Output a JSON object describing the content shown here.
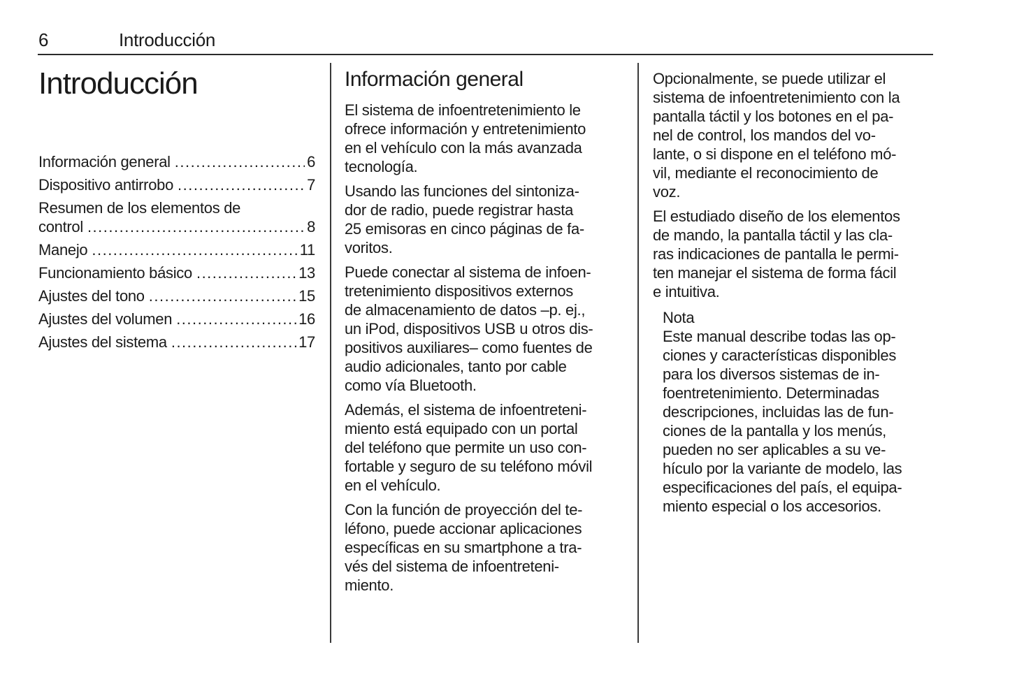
{
  "colors": {
    "text": "#1a1a1a",
    "rule": "#2b2b2b"
  },
  "page_header": {
    "page_number": "6",
    "title": "Introducción"
  },
  "left_column": {
    "chapter_title": "Introducción",
    "toc": {
      "items": [
        {
          "label": "Información general",
          "page": "6"
        },
        {
          "label": "Dispositivo antirrobo",
          "page": "7"
        },
        {
          "label": "Resumen de los elementos de",
          "label2": "control",
          "page": "8"
        },
        {
          "label": "Manejo",
          "page": "11"
        },
        {
          "label": "Funcionamiento básico",
          "page": "13"
        },
        {
          "label": "Ajustes del tono",
          "page": "15"
        },
        {
          "label": "Ajustes del volumen",
          "page": "16"
        },
        {
          "label": "Ajustes del sistema",
          "page": "17"
        }
      ]
    }
  },
  "middle_column": {
    "heading": "Información general",
    "paragraphs": [
      "El sistema de infoentretenimiento le\nofrece información y entretenimiento\nen el vehículo con la más avanzada\ntecnología.",
      "Usando las funciones del sintoniza-\ndor de radio, puede registrar hasta\n25 emisoras en cinco páginas de fa-\nvoritos.",
      "Puede conectar al sistema de infoen-\ntretenimiento dispositivos externos\nde almacenamiento de datos –p. ej.,\nun iPod, dispositivos USB u otros dis-\npositivos auxiliares– como fuentes de\naudio adicionales, tanto por cable\ncomo vía Bluetooth.",
      "Además, el sistema de infoentreteni-\nmiento está equipado con un portal\ndel teléfono que permite un uso con-\nfortable y seguro de su teléfono móvil\nen el vehículo.",
      "Con la función de proyección del te-\nléfono, puede accionar aplicaciones\nespecíficas en su smartphone a tra-\nvés del sistema de infoentreteni-\nmiento."
    ]
  },
  "right_column": {
    "paragraphs": [
      "Opcionalmente, se puede utilizar el\nsistema de infoentretenimiento con la\npantalla táctil y los botones en el pa-\nnel de control, los mandos del vo-\nlante, o si dispone en el teléfono mó-\nvil, mediante el reconocimiento de\nvoz.",
      "El estudiado diseño de los elementos\nde mando, la pantalla táctil y las cla-\nras indicaciones de pantalla le permi-\nten manejar el sistema de forma fácil\ne intuitiva."
    ],
    "note": {
      "label": "Nota",
      "text": "Este manual describe todas las op-\nciones y características disponibles\npara los diversos sistemas de in-\nfoentretenimiento. Determinadas\ndescripciones, incluidas las de fun-\nciones de la pantalla y los menús,\npueden no ser aplicables a su ve-\nhículo por la variante de modelo, las\nespecificaciones del país, el equipa-\nmiento especial o los accesorios."
    }
  }
}
